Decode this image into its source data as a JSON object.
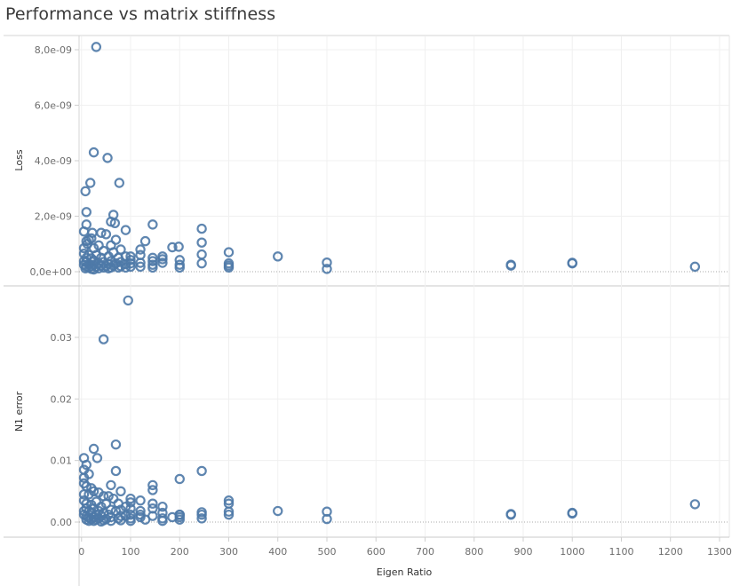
{
  "chart_data": {
    "type": "scatter",
    "title": "Performance vs matrix stiffness",
    "xlabel": "Eigen Ratio",
    "x_ticks": [
      "0",
      "100",
      "200",
      "300",
      "400",
      "500",
      "600",
      "700",
      "800",
      "900",
      "1000",
      "1100",
      "1200",
      "1300"
    ],
    "xlim": [
      -5,
      1320
    ],
    "grid": true,
    "panels": [
      {
        "ylabel": "Loss",
        "ylim": [
          -0.0,
          8.4e-09
        ],
        "y_ticks": [
          {
            "value": 0.0,
            "label": "0,0e+00"
          },
          {
            "value": 2e-09,
            "label": "2,0e-09"
          },
          {
            "value": 4e-09,
            "label": "4,0e-09"
          },
          {
            "value": 6e-09,
            "label": "6,0e-09"
          },
          {
            "value": 8e-09,
            "label": "8,0e-09"
          }
        ],
        "points": [
          [
            30,
            8.1e-09
          ],
          [
            25,
            4.3e-09
          ],
          [
            53,
            4.1e-09
          ],
          [
            18,
            3.2e-09
          ],
          [
            77,
            3.2e-09
          ],
          [
            8,
            2.9e-09
          ],
          [
            10,
            2.15e-09
          ],
          [
            65,
            2.05e-09
          ],
          [
            60,
            1.8e-09
          ],
          [
            68,
            1.75e-09
          ],
          [
            145,
            1.7e-09
          ],
          [
            10,
            1.7e-09
          ],
          [
            90,
            1.5e-09
          ],
          [
            245,
            1.55e-09
          ],
          [
            5,
            1.45e-09
          ],
          [
            40,
            1.4e-09
          ],
          [
            22,
            1.4e-09
          ],
          [
            50,
            1.35e-09
          ],
          [
            20,
            1.2e-09
          ],
          [
            10,
            1.1e-09
          ],
          [
            15,
            1.15e-09
          ],
          [
            70,
            1.15e-09
          ],
          [
            130,
            1.1e-09
          ],
          [
            245,
            1.05e-09
          ],
          [
            12,
            1e-09
          ],
          [
            60,
            9.5e-10
          ],
          [
            35,
            9.5e-10
          ],
          [
            185,
            8.8e-10
          ],
          [
            198,
            9e-10
          ],
          [
            5,
            8.5e-10
          ],
          [
            25,
            8.5e-10
          ],
          [
            80,
            8e-10
          ],
          [
            120,
            8e-10
          ],
          [
            300,
            7e-10
          ],
          [
            45,
            7.5e-10
          ],
          [
            65,
            7e-10
          ],
          [
            5,
            6.5e-10
          ],
          [
            15,
            6e-10
          ],
          [
            30,
            6e-10
          ],
          [
            100,
            5.5e-10
          ],
          [
            120,
            6e-10
          ],
          [
            245,
            6.2e-10
          ],
          [
            400,
            5.5e-10
          ],
          [
            165,
            5.5e-10
          ],
          [
            55,
            5.5e-10
          ],
          [
            90,
            5.5e-10
          ],
          [
            145,
            5e-10
          ],
          [
            75,
            5e-10
          ],
          [
            10,
            5e-10
          ],
          [
            20,
            4.8e-10
          ],
          [
            40,
            5e-10
          ],
          [
            165,
            4.5e-10
          ],
          [
            200,
            4.2e-10
          ],
          [
            100,
            4.2e-10
          ],
          [
            500,
            3.3e-10
          ],
          [
            5,
            3.8e-10
          ],
          [
            25,
            4e-10
          ],
          [
            145,
            3.8e-10
          ],
          [
            60,
            3.8e-10
          ],
          [
            300,
            3e-10
          ],
          [
            875,
            2.5e-10
          ],
          [
            1000,
            3.2e-10
          ],
          [
            10,
            3.5e-10
          ],
          [
            45,
            3.5e-10
          ],
          [
            80,
            3.5e-10
          ],
          [
            120,
            3.2e-10
          ],
          [
            165,
            3.2e-10
          ],
          [
            245,
            3e-10
          ],
          [
            35,
            3e-10
          ],
          [
            70,
            3e-10
          ],
          [
            100,
            3e-10
          ],
          [
            15,
            2.8e-10
          ],
          [
            55,
            2.8e-10
          ],
          [
            90,
            2.7e-10
          ],
          [
            145,
            2.5e-10
          ],
          [
            200,
            2.5e-10
          ],
          [
            300,
            2.2e-10
          ],
          [
            875,
            2.2e-10
          ],
          [
            1000,
            3e-10
          ],
          [
            5,
            2.5e-10
          ],
          [
            25,
            2.5e-10
          ],
          [
            40,
            2.2e-10
          ],
          [
            65,
            2.2e-10
          ],
          [
            80,
            2e-10
          ],
          [
            120,
            1.8e-10
          ],
          [
            1250,
            1.8e-10
          ],
          [
            20,
            2e-10
          ],
          [
            50,
            2e-10
          ],
          [
            100,
            1.8e-10
          ],
          [
            10,
            1.8e-10
          ],
          [
            30,
            1.8e-10
          ],
          [
            60,
            1.5e-10
          ],
          [
            145,
            1.5e-10
          ],
          [
            200,
            1.5e-10
          ],
          [
            300,
            1.5e-10
          ],
          [
            500,
            1e-10
          ],
          [
            15,
            1.5e-10
          ],
          [
            35,
            1.2e-10
          ],
          [
            75,
            1.5e-10
          ],
          [
            45,
            1.5e-10
          ],
          [
            20,
            1e-10
          ],
          [
            8,
            1.2e-10
          ],
          [
            25,
            8e-11
          ],
          [
            55,
            1.2e-10
          ],
          [
            90,
            1.5e-10
          ]
        ]
      },
      {
        "ylabel": "N1 error",
        "ylim": [
          -0.0015,
          0.0385
        ],
        "y_ticks": [
          {
            "value": 0.0,
            "label": "0.00"
          },
          {
            "value": 0.01,
            "label": "0.01"
          },
          {
            "value": 0.02,
            "label": "0.02"
          },
          {
            "value": 0.03,
            "label": "0.03"
          }
        ],
        "points": [
          [
            95,
            0.036
          ],
          [
            45,
            0.0297
          ],
          [
            70,
            0.0126
          ],
          [
            25,
            0.0119
          ],
          [
            5,
            0.0104
          ],
          [
            32,
            0.0104
          ],
          [
            10,
            0.0093
          ],
          [
            5,
            0.0085
          ],
          [
            70,
            0.0083
          ],
          [
            245,
            0.0083
          ],
          [
            15,
            0.0078
          ],
          [
            5,
            0.0072
          ],
          [
            200,
            0.007
          ],
          [
            5,
            0.0063
          ],
          [
            60,
            0.006
          ],
          [
            145,
            0.006
          ],
          [
            10,
            0.0058
          ],
          [
            20,
            0.0055
          ],
          [
            145,
            0.0052
          ],
          [
            25,
            0.005
          ],
          [
            80,
            0.005
          ],
          [
            35,
            0.0048
          ],
          [
            5,
            0.0045
          ],
          [
            45,
            0.0042
          ],
          [
            55,
            0.0042
          ],
          [
            15,
            0.0045
          ],
          [
            100,
            0.0038
          ],
          [
            65,
            0.0038
          ],
          [
            120,
            0.0035
          ],
          [
            300,
            0.0035
          ],
          [
            5,
            0.0035
          ],
          [
            30,
            0.0033
          ],
          [
            1250,
            0.0029
          ],
          [
            10,
            0.003
          ],
          [
            50,
            0.003
          ],
          [
            75,
            0.003
          ],
          [
            100,
            0.0032
          ],
          [
            300,
            0.003
          ],
          [
            145,
            0.003
          ],
          [
            165,
            0.0025
          ],
          [
            20,
            0.0028
          ],
          [
            40,
            0.0025
          ],
          [
            90,
            0.0025
          ],
          [
            200,
            0.0012
          ],
          [
            245,
            0.0016
          ],
          [
            10,
            0.0022
          ],
          [
            25,
            0.0022
          ],
          [
            60,
            0.002
          ],
          [
            80,
            0.002
          ],
          [
            100,
            0.0022
          ],
          [
            145,
            0.0022
          ],
          [
            120,
            0.0018
          ],
          [
            300,
            0.0017
          ],
          [
            400,
            0.0018
          ],
          [
            500,
            0.0017
          ],
          [
            1000,
            0.0015
          ],
          [
            5,
            0.0018
          ],
          [
            15,
            0.0018
          ],
          [
            35,
            0.0018
          ],
          [
            70,
            0.0018
          ],
          [
            165,
            0.0015
          ],
          [
            875,
            0.0013
          ],
          [
            875,
            0.0012
          ],
          [
            1000,
            0.0014
          ],
          [
            20,
            0.0015
          ],
          [
            45,
            0.0015
          ],
          [
            55,
            0.0012
          ],
          [
            100,
            0.0012
          ],
          [
            120,
            0.0012
          ],
          [
            200,
            0.0012
          ],
          [
            245,
            0.0012
          ],
          [
            300,
            0.0012
          ],
          [
            5,
            0.0012
          ],
          [
            30,
            0.0012
          ],
          [
            90,
            0.001
          ],
          [
            10,
            0.001
          ],
          [
            40,
            0.001
          ],
          [
            80,
            0.001
          ],
          [
            145,
            0.001
          ],
          [
            185,
            0.0008
          ],
          [
            200,
            0.0008
          ],
          [
            25,
            0.0008
          ],
          [
            60,
            0.0008
          ],
          [
            120,
            0.0008
          ],
          [
            15,
            0.0007
          ],
          [
            35,
            0.0006
          ],
          [
            75,
            0.0006
          ],
          [
            100,
            0.0006
          ],
          [
            165,
            0.0006
          ],
          [
            500,
            0.0005
          ],
          [
            245,
            0.0006
          ],
          [
            20,
            0.0005
          ],
          [
            50,
            0.0005
          ],
          [
            10,
            0.0004
          ],
          [
            30,
            0.0004
          ],
          [
            130,
            0.0004
          ],
          [
            200,
            0.0004
          ],
          [
            45,
            0.0003
          ],
          [
            80,
            0.0003
          ],
          [
            25,
            0.0002
          ],
          [
            60,
            0.0002
          ],
          [
            15,
            0.0002
          ],
          [
            100,
            0.0002
          ],
          [
            165,
            0.0002
          ],
          [
            40,
            0.0001
          ]
        ]
      }
    ],
    "marker_color": "#4e79a7"
  }
}
